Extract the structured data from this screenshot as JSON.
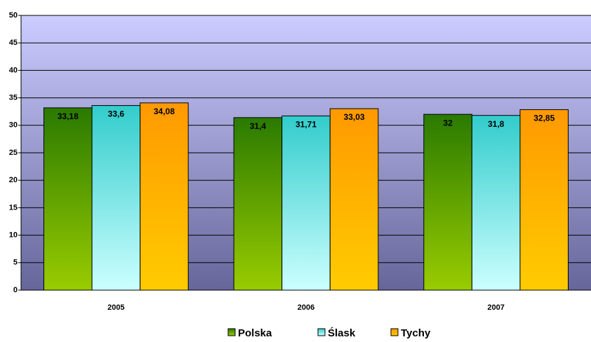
{
  "chart_data": {
    "type": "bar",
    "categories": [
      "2005",
      "2006",
      "2007"
    ],
    "series": [
      {
        "name": "Polska",
        "color": "#2a7a00",
        "values": [
          33.18,
          31.4,
          32
        ],
        "value_labels": [
          "33,18",
          "31,4",
          "32"
        ]
      },
      {
        "name": "Ślask",
        "color": "#33cccc",
        "values": [
          33.6,
          31.71,
          31.8
        ],
        "value_labels": [
          "33,6",
          "31,71",
          "31,8"
        ]
      },
      {
        "name": "Tychy",
        "color": "#ff9900",
        "values": [
          34.08,
          33.03,
          32.85
        ],
        "value_labels": [
          "34,08",
          "33,03",
          "32,85"
        ]
      }
    ],
    "ylim": [
      0,
      50
    ],
    "yticks": [
      0,
      5,
      10,
      15,
      20,
      25,
      30,
      35,
      40,
      45,
      50
    ],
    "grid": true,
    "legend": "bottom"
  }
}
